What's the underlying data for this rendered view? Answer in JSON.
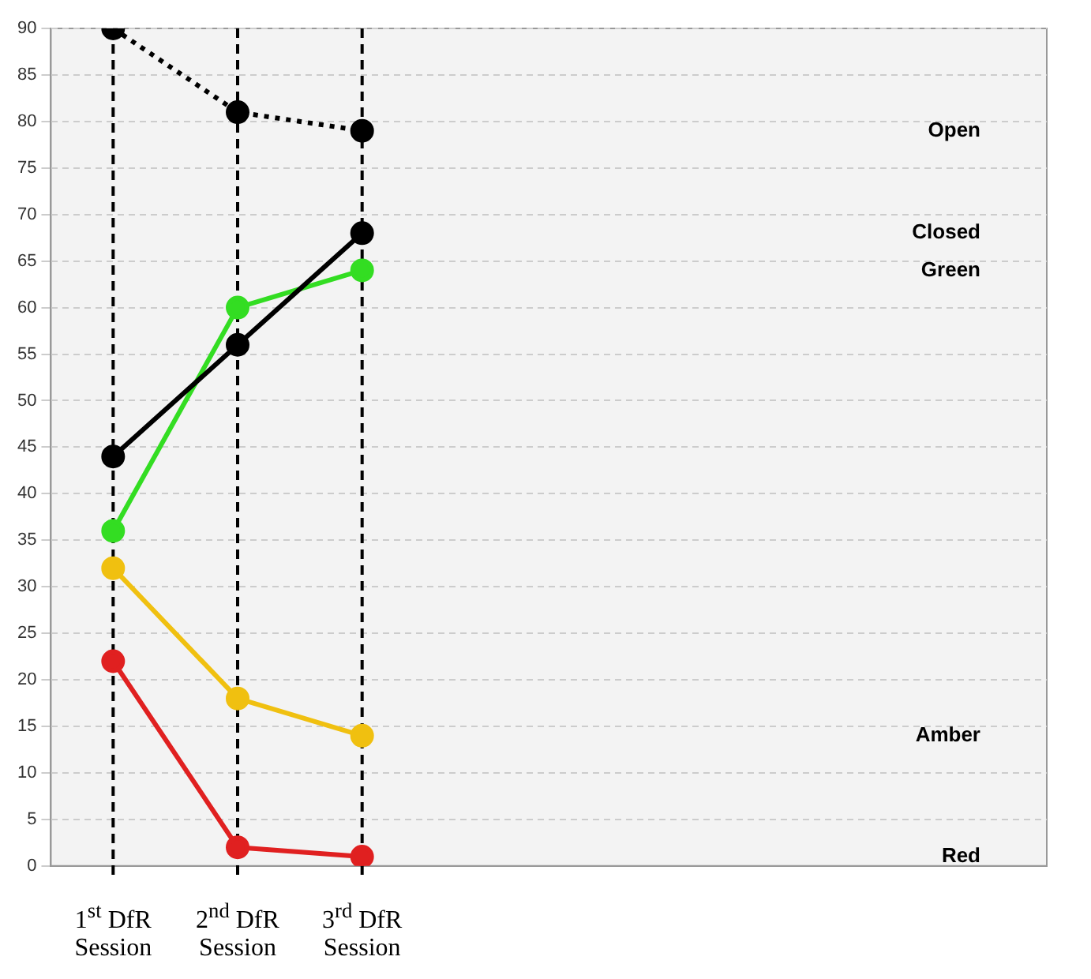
{
  "chart_data": {
    "type": "line",
    "categories": [
      "1$^{st}$ DfR Session",
      "2$^{nd}$ DfR Session",
      "3$^{rd}$ DfR Session",
      null,
      null,
      null,
      null,
      null
    ],
    "series": [
      {
        "name": "Open",
        "color": "#000000",
        "line_style": "dotted",
        "values": [
          90,
          81,
          79,
          null,
          null,
          null,
          null,
          null
        ]
      },
      {
        "name": "Closed",
        "color": "#000000",
        "values": [
          44,
          56,
          68,
          null,
          null,
          null,
          null,
          null
        ]
      },
      {
        "name": "Green",
        "color": "#33dd22",
        "values": [
          36,
          60,
          64,
          null,
          null,
          null,
          null,
          null
        ]
      },
      {
        "name": "Amber",
        "color": "#f0c010",
        "values": [
          32,
          18,
          14,
          null,
          null,
          null,
          null,
          null
        ]
      },
      {
        "name": "Red",
        "color": "#e02020",
        "values": [
          22,
          2,
          1,
          null,
          null,
          null,
          null,
          null
        ]
      }
    ],
    "ylim": [
      0,
      90
    ],
    "yticks": [
      0,
      5,
      10,
      15,
      20,
      25,
      30,
      35,
      40,
      45,
      50,
      55,
      60,
      65,
      70,
      75,
      80,
      85,
      90
    ],
    "ref_lines": [
      {
        "axis": "x",
        "value": "1$^{st}$ DfR Session",
        "label": null,
        "color": "#000000",
        "line_style": "dashed"
      },
      {
        "axis": "x",
        "value": "2$^{nd}$ DfR Session",
        "label": null,
        "color": "#000000",
        "line_style": "dashed"
      },
      {
        "axis": "x",
        "value": "3$^{rd}$ DfR Session",
        "label": null,
        "color": "#000000",
        "line_style": "dashed"
      }
    ],
    "grid": "y",
    "legend": false,
    "marker": "circle",
    "line_style": "solid"
  }
}
